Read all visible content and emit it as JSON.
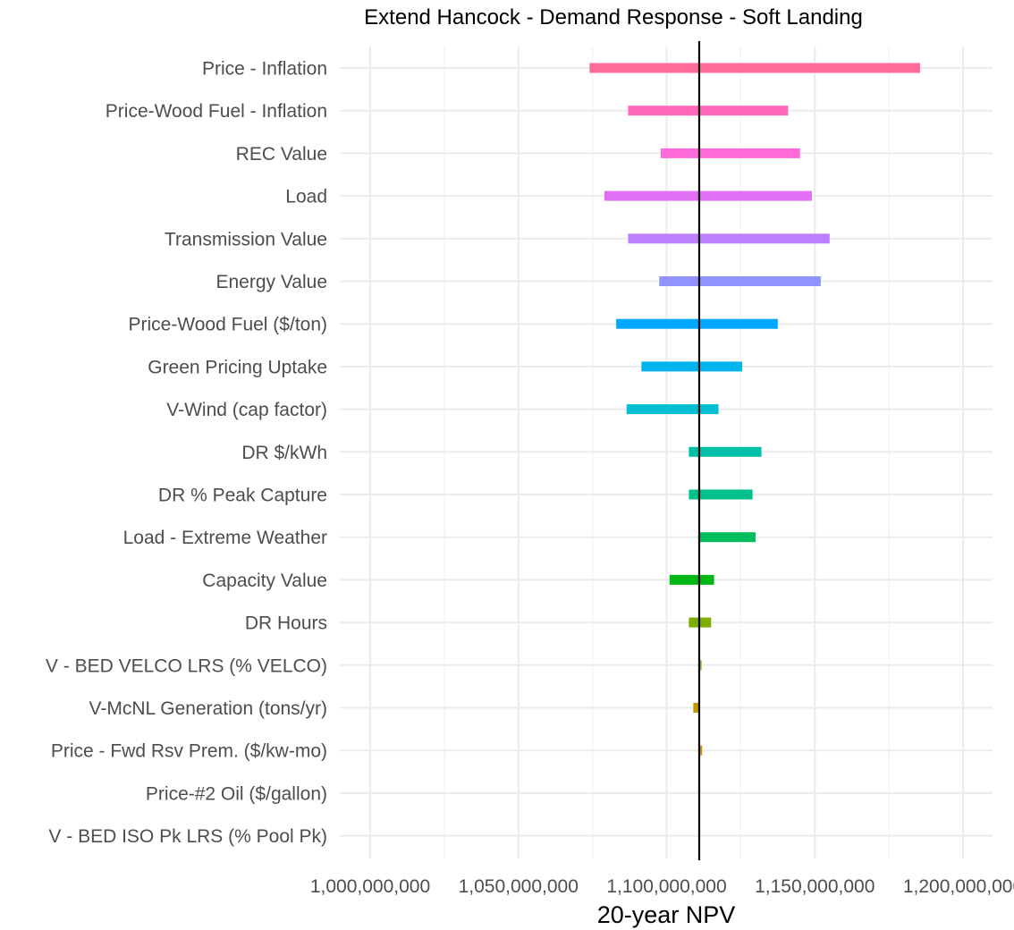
{
  "chart_data": {
    "type": "bar",
    "subtype": "tornado",
    "title": "Extend Hancock - Demand Response - Soft Landing",
    "xlabel": "20-year NPV",
    "ylabel": "",
    "xlim": [
      970000000,
      1210000000
    ],
    "x_ticks": [
      1000000000,
      1050000000,
      1100000000,
      1150000000,
      1200000000
    ],
    "x_tick_labels": [
      "1,000,000,000",
      "1,050,000,000",
      "1,100,000,000",
      "1,150,000,000",
      "1,200,000,000"
    ],
    "baseline": 1111000000,
    "grid": true,
    "legend": "none",
    "categories": [
      "Price - Inflation",
      "Price-Wood Fuel - Inflation",
      "REC Value",
      "Load",
      "Transmission Value",
      "Energy Value",
      "Price-Wood Fuel ($/ton)",
      "Green Pricing Uptake",
      "V-Wind (cap factor)",
      "DR $/kWh",
      "DR % Peak Capture",
      "Load - Extreme Weather",
      "Capacity Value",
      "DR Hours",
      "V - BED VELCO LRS (% VELCO)",
      "V-McNL Generation (tons/yr)",
      "Price - Fwd Rsv Prem. ($/kw-mo)",
      "Price-#2 Oil ($/gallon)",
      "V - BED ISO Pk LRS (% Pool Pk)"
    ],
    "low": [
      1074000000,
      1087000000,
      1098000000,
      1079000000,
      1087000000,
      1097500000,
      1083000000,
      1091500000,
      1086500000,
      1107500000,
      1107500000,
      1111000000,
      1101000000,
      1107500000,
      1111000000,
      1109000000,
      1111000000,
      1111000000,
      1111000000
    ],
    "high": [
      1185500000,
      1141000000,
      1145000000,
      1149000000,
      1155000000,
      1152000000,
      1137500000,
      1125500000,
      1117500000,
      1132000000,
      1129000000,
      1130000000,
      1116000000,
      1115000000,
      1111800000,
      1111000000,
      1112000000,
      1111000000,
      1111000000
    ],
    "colors": [
      "#FF6C98",
      "#FF67B8",
      "#FE6ADA",
      "#E270F5",
      "#BC7FFE",
      "#8F92FF",
      "#00A8FF",
      "#00B4EF",
      "#00BED3",
      "#00C1A7",
      "#00C18B",
      "#00BC5A",
      "#00B815",
      "#7CAE00",
      "#A3A500",
      "#C09B00",
      "#D89000",
      "#E7851E",
      "#F8766D"
    ]
  }
}
